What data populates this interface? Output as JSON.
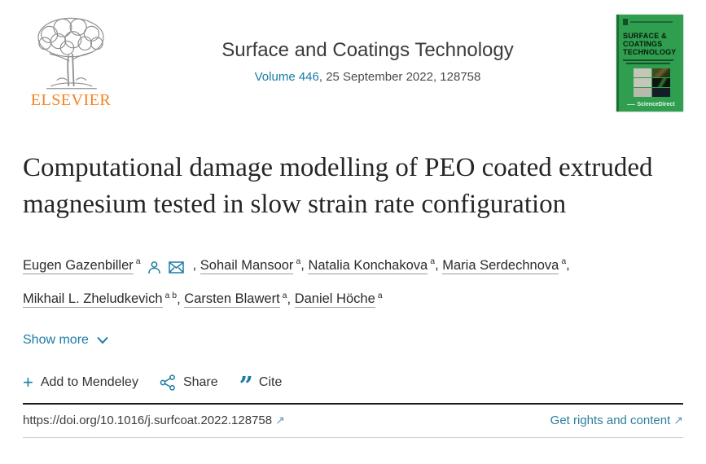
{
  "header": {
    "elsevier_wordmark": "ELSEVIER",
    "journal_title": "Surface and Coatings Technology",
    "volume_link": "Volume 446",
    "issue_suffix": ", 25 September 2022, 128758",
    "cover": {
      "title_lines": [
        "SURFACE &",
        "COATINGS",
        "TECHNOLOGY"
      ],
      "sciencedirect_label": "ScienceDirect"
    }
  },
  "article": {
    "title": "Computational damage modelling of PEO coated extruded magnesium tested in slow strain rate configuration",
    "authors": [
      {
        "name": "Eugen Gazenbiller",
        "sup": "a",
        "icons": [
          "person-icon",
          "envelope-icon"
        ]
      },
      {
        "name": "Sohail Mansoor",
        "sup": "a",
        "icons": []
      },
      {
        "name": "Natalia Konchakova",
        "sup": "a",
        "icons": []
      },
      {
        "name": "Maria Serdechnova",
        "sup": "a",
        "icons": []
      },
      {
        "name": "Mikhail L. Zheludkevich",
        "sup": "a b",
        "icons": []
      },
      {
        "name": "Carsten Blawert",
        "sup": "a",
        "icons": []
      },
      {
        "name": "Daniel Höche",
        "sup": "a",
        "icons": []
      }
    ],
    "author_lines": [
      {
        "author_indexes": [
          0,
          1,
          2,
          3
        ],
        "trailing_separator": true
      },
      {
        "author_indexes": [
          4,
          5,
          6
        ],
        "trailing_separator": false
      }
    ],
    "separator": ",",
    "show_more_label": "Show more"
  },
  "actions": {
    "add_to_mendeley": "Add to Mendeley",
    "share": "Share",
    "cite": "Cite"
  },
  "footer": {
    "doi": "https://doi.org/10.1016/j.surfcoat.2022.128758",
    "rights_link": "Get rights and content"
  },
  "icons": {
    "plus": "+",
    "cite_quotes": "”",
    "external_arrow": "↗"
  },
  "colors": {
    "link_teal": "#1b7ba5",
    "elsevier_orange": "#f58220",
    "cover_green": "#2f9e4e",
    "text_dark": "#262626"
  }
}
